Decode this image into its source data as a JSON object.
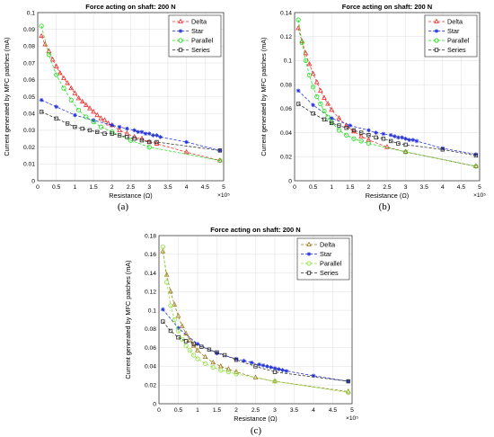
{
  "panels": [
    {
      "label": "(a)"
    },
    {
      "label": "(b)"
    },
    {
      "label": "(c)"
    }
  ],
  "colors": {
    "delta": "#e8312f",
    "star": "#1f2fd8",
    "parallel": "#22dd1b",
    "series": "#2b2b2b",
    "delta_c": "#9e7a1f",
    "parallel_c": "#8be23a"
  },
  "chart_data": [
    {
      "type": "line",
      "title": "Force acting on shaft: 200 N",
      "xlabel": "Resistance (Ω)",
      "ylabel": "Current generated by MFC patches (mA)",
      "x_exponent": "×10⁵",
      "xlim": [
        0,
        5
      ],
      "ylim": [
        0,
        0.1
      ],
      "xticks": [
        "0",
        "0.5",
        "1",
        "1.5",
        "2",
        "2.5",
        "3",
        "3.5",
        "4",
        "4.5",
        "5"
      ],
      "yticks": [
        "0",
        "0.01",
        "0.02",
        "0.03",
        "0.04",
        "0.05",
        "0.06",
        "0.07",
        "0.08",
        "0.09",
        "0.1"
      ],
      "grid": true,
      "legend_position": "top-right",
      "series": [
        {
          "name": "Delta",
          "marker": "triangle",
          "x": [
            0.1,
            0.2,
            0.3,
            0.4,
            0.5,
            0.6,
            0.7,
            0.8,
            0.9,
            1.0,
            1.1,
            1.2,
            1.3,
            1.4,
            1.5,
            1.6,
            1.7,
            1.8,
            1.9,
            2.0,
            2.2,
            2.4,
            2.6,
            2.8,
            3.0,
            3.2,
            4.0,
            4.9
          ],
          "y": [
            0.086,
            0.081,
            0.077,
            0.072,
            0.068,
            0.064,
            0.061,
            0.058,
            0.055,
            0.052,
            0.049,
            0.047,
            0.045,
            0.043,
            0.041,
            0.039,
            0.037,
            0.036,
            0.034,
            0.033,
            0.03,
            0.028,
            0.026,
            0.025,
            0.023,
            0.022,
            0.017,
            0.012
          ]
        },
        {
          "name": "Star",
          "marker": "asterisk",
          "x": [
            0.1,
            0.5,
            1.0,
            1.5,
            2.0,
            2.2,
            2.4,
            2.6,
            2.7,
            2.8,
            2.9,
            3.0,
            3.1,
            3.2,
            3.3,
            4.0,
            4.9
          ],
          "y": [
            0.048,
            0.044,
            0.039,
            0.036,
            0.033,
            0.032,
            0.031,
            0.03,
            0.029,
            0.029,
            0.028,
            0.028,
            0.027,
            0.027,
            0.026,
            0.023,
            0.018
          ]
        },
        {
          "name": "Parallel",
          "marker": "circle",
          "x": [
            0.1,
            0.3,
            0.5,
            0.7,
            0.9,
            1.1,
            1.3,
            1.5,
            1.7,
            2.0,
            2.5,
            3.0,
            4.9
          ],
          "y": [
            0.092,
            0.075,
            0.063,
            0.055,
            0.048,
            0.042,
            0.038,
            0.035,
            0.032,
            0.029,
            0.024,
            0.02,
            0.012
          ]
        },
        {
          "name": "Series",
          "marker": "square",
          "x": [
            0.1,
            0.5,
            0.8,
            1.0,
            1.2,
            1.4,
            1.6,
            1.8,
            2.0,
            2.2,
            2.4,
            2.6,
            2.8,
            3.0,
            3.2,
            4.9
          ],
          "y": [
            0.041,
            0.037,
            0.034,
            0.032,
            0.031,
            0.03,
            0.029,
            0.028,
            0.028,
            0.027,
            0.026,
            0.025,
            0.024,
            0.023,
            0.023,
            0.018
          ]
        }
      ]
    },
    {
      "type": "line",
      "title": "Force acting on shaft: 200 N",
      "xlabel": "Resistance (Ω)",
      "ylabel": "Current generated by MFC patches (mA)",
      "x_exponent": "×10⁵",
      "xlim": [
        0,
        5
      ],
      "ylim": [
        0,
        0.14
      ],
      "xticks": [
        "0",
        "0.5",
        "1",
        "1.5",
        "2",
        "2.5",
        "3",
        "3.5",
        "4",
        "4.5",
        "5"
      ],
      "yticks": [
        "0",
        "0.02",
        "0.04",
        "0.06",
        "0.08",
        "0.1",
        "0.12",
        "0.14"
      ],
      "grid": true,
      "legend_position": "top-right",
      "series": [
        {
          "name": "Delta",
          "marker": "triangle",
          "x": [
            0.1,
            0.2,
            0.3,
            0.4,
            0.5,
            0.6,
            0.7,
            0.8,
            0.9,
            1.0,
            1.2,
            1.4,
            1.6,
            1.8,
            2.0,
            2.5,
            3.0,
            4.9
          ],
          "y": [
            0.127,
            0.116,
            0.106,
            0.097,
            0.089,
            0.082,
            0.075,
            0.069,
            0.064,
            0.059,
            0.052,
            0.046,
            0.041,
            0.037,
            0.034,
            0.028,
            0.024,
            0.012
          ]
        },
        {
          "name": "Star",
          "marker": "asterisk",
          "x": [
            0.1,
            0.5,
            1.0,
            1.5,
            2.0,
            2.2,
            2.4,
            2.6,
            2.7,
            2.8,
            2.9,
            3.0,
            3.1,
            3.2,
            3.3,
            4.0,
            4.9
          ],
          "y": [
            0.075,
            0.063,
            0.052,
            0.046,
            0.042,
            0.04,
            0.039,
            0.038,
            0.037,
            0.036,
            0.036,
            0.035,
            0.034,
            0.034,
            0.033,
            0.027,
            0.022
          ]
        },
        {
          "name": "Parallel",
          "marker": "circle",
          "x": [
            0.1,
            0.2,
            0.3,
            0.4,
            0.5,
            0.6,
            0.7,
            0.8,
            0.9,
            1.0,
            1.2,
            1.4,
            1.6,
            1.8,
            2.0,
            3.0,
            4.9
          ],
          "y": [
            0.134,
            0.115,
            0.1,
            0.088,
            0.078,
            0.07,
            0.064,
            0.058,
            0.053,
            0.049,
            0.042,
            0.038,
            0.035,
            0.033,
            0.031,
            0.024,
            0.012
          ]
        },
        {
          "name": "Series",
          "marker": "square",
          "x": [
            0.1,
            0.5,
            0.8,
            1.0,
            1.2,
            1.4,
            1.6,
            1.8,
            2.0,
            2.2,
            2.4,
            2.6,
            2.8,
            3.0,
            4.0,
            4.9
          ],
          "y": [
            0.064,
            0.056,
            0.051,
            0.048,
            0.046,
            0.044,
            0.042,
            0.04,
            0.038,
            0.036,
            0.035,
            0.033,
            0.031,
            0.03,
            0.026,
            0.021
          ]
        }
      ]
    },
    {
      "type": "line",
      "title": "Force acting on shaft: 200 N",
      "xlabel": "Resistance (Ω)",
      "ylabel": "Current generated by MFC patches (mA)",
      "x_exponent": "×10⁵",
      "xlim": [
        0,
        5
      ],
      "ylim": [
        0,
        0.18
      ],
      "xticks": [
        "0",
        "0.5",
        "1",
        "1.5",
        "2",
        "2.5",
        "3",
        "3.5",
        "4",
        "4.5",
        "5"
      ],
      "yticks": [
        "0",
        "0.02",
        "0.04",
        "0.06",
        "0.08",
        "0.1",
        "0.12",
        "0.14",
        "0.16",
        "0.18"
      ],
      "grid": true,
      "legend_position": "top-right",
      "series": [
        {
          "name": "Delta",
          "marker": "triangle",
          "x": [
            0.1,
            0.2,
            0.3,
            0.4,
            0.5,
            0.6,
            0.7,
            0.8,
            0.9,
            1.0,
            1.2,
            1.4,
            1.6,
            1.8,
            2.0,
            2.5,
            3.0,
            4.9
          ],
          "y": [
            0.163,
            0.138,
            0.12,
            0.106,
            0.094,
            0.083,
            0.075,
            0.068,
            0.062,
            0.057,
            0.05,
            0.044,
            0.04,
            0.037,
            0.034,
            0.028,
            0.024,
            0.013
          ]
        },
        {
          "name": "Star",
          "marker": "asterisk",
          "x": [
            0.1,
            0.5,
            1.0,
            1.5,
            2.0,
            2.2,
            2.4,
            2.6,
            2.7,
            2.8,
            2.9,
            3.0,
            3.1,
            3.2,
            3.3,
            4.0,
            4.9
          ],
          "y": [
            0.101,
            0.081,
            0.064,
            0.054,
            0.048,
            0.046,
            0.044,
            0.042,
            0.041,
            0.04,
            0.039,
            0.038,
            0.037,
            0.036,
            0.035,
            0.03,
            0.024
          ]
        },
        {
          "name": "Parallel",
          "marker": "circle",
          "x": [
            0.1,
            0.2,
            0.3,
            0.4,
            0.5,
            0.6,
            0.7,
            0.8,
            0.9,
            1.0,
            1.2,
            1.4,
            1.6,
            1.8,
            2.0,
            3.0,
            4.9
          ],
          "y": [
            0.168,
            0.13,
            0.105,
            0.09,
            0.078,
            0.069,
            0.062,
            0.057,
            0.052,
            0.048,
            0.043,
            0.039,
            0.036,
            0.034,
            0.032,
            0.024,
            0.012
          ]
        },
        {
          "name": "Series",
          "marker": "square",
          "x": [
            0.1,
            0.3,
            0.5,
            0.7,
            0.9,
            1.1,
            1.3,
            1.5,
            1.7,
            2.0,
            2.5,
            3.0,
            4.9
          ],
          "y": [
            0.088,
            0.078,
            0.071,
            0.067,
            0.064,
            0.061,
            0.058,
            0.055,
            0.052,
            0.047,
            0.04,
            0.034,
            0.024
          ]
        }
      ]
    }
  ]
}
